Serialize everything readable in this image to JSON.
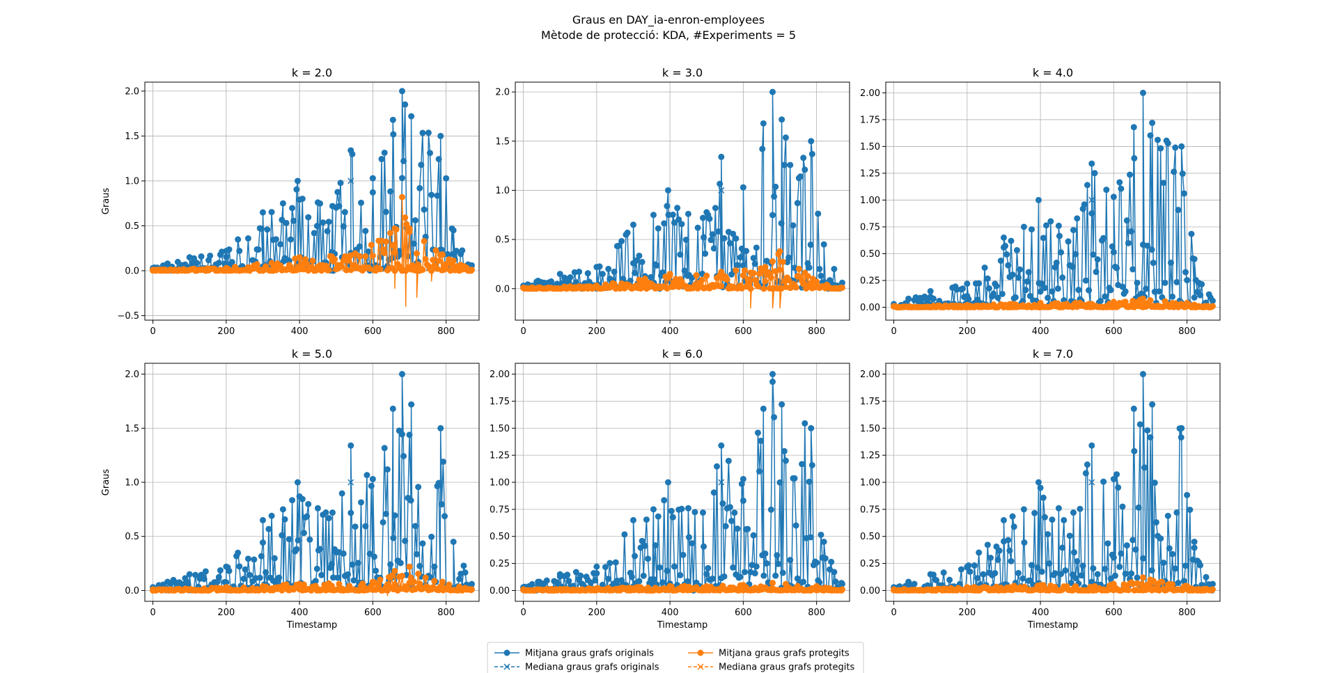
{
  "figure": {
    "title_line1": "Graus en DAY_ia-enron-employees",
    "title_line2": "Mètode de protecció: KDA, #Experiments = 5"
  },
  "legend": {
    "entries": [
      {
        "label": "Mitjana graus grafs originals",
        "series": "mean_original",
        "marker": "o",
        "linestyle": "solid",
        "color": "#1f77b4"
      },
      {
        "label": "Mediana graus grafs originals",
        "series": "median_original",
        "marker": "x",
        "linestyle": "dashed",
        "color": "#1f77b4"
      },
      {
        "label": "Mitjana graus grafs protegits",
        "series": "mean_protected",
        "marker": "o",
        "linestyle": "solid",
        "color": "#ff7f0e"
      },
      {
        "label": "Mediana graus grafs protegits",
        "series": "median_protected",
        "marker": "x",
        "linestyle": "dashed",
        "color": "#ff7f0e"
      }
    ],
    "placement": "bottom-center",
    "columns": 2
  },
  "colors": {
    "original": "#1f77b4",
    "protected": "#ff7f0e",
    "grid": "#b0b0b0"
  },
  "chart_data": [
    {
      "type": "line",
      "title": "k = 2.0",
      "xlabel": "",
      "ylabel": "Graus",
      "xlim": [
        -22,
        890
      ],
      "ylim": [
        -0.55,
        2.1
      ],
      "xticks": [
        0,
        200,
        400,
        600,
        800
      ],
      "yticks": [
        -0.5,
        0.0,
        0.5,
        1.0,
        1.5,
        2.0
      ],
      "ytick_labels": [
        "−0.5",
        "0.0",
        "0.5",
        "1.0",
        "1.5",
        "2.0"
      ],
      "grid": true,
      "x_range": [
        0,
        870
      ],
      "original_peaks": [
        [
          0,
          0.03
        ],
        [
          40,
          0.08
        ],
        [
          100,
          0.15
        ],
        [
          200,
          0.22
        ],
        [
          300,
          0.65
        ],
        [
          355,
          0.75
        ],
        [
          395,
          1.0
        ],
        [
          450,
          0.76
        ],
        [
          490,
          0.72
        ],
        [
          540,
          1.34
        ],
        [
          600,
          1.03
        ],
        [
          655,
          1.68
        ],
        [
          680,
          2.0
        ],
        [
          705,
          1.72
        ],
        [
          785,
          1.5
        ],
        [
          820,
          0.45
        ],
        [
          870,
          0.06
        ]
      ],
      "original_median_marker": [
        540,
        1.0
      ],
      "protected_peaks": [
        [
          0,
          0.01
        ],
        [
          200,
          0.03
        ],
        [
          400,
          0.15
        ],
        [
          540,
          0.17
        ],
        [
          660,
          0.47
        ],
        [
          680,
          0.82
        ],
        [
          700,
          0.47
        ],
        [
          790,
          0.18
        ],
        [
          870,
          0.01
        ]
      ],
      "protected_dips": [
        [
          660,
          -0.2
        ],
        [
          690,
          -0.4
        ],
        [
          720,
          -0.3
        ],
        [
          760,
          -0.12
        ]
      ]
    },
    {
      "type": "line",
      "title": "k = 3.0",
      "xlabel": "",
      "ylabel": "",
      "xlim": [
        -22,
        890
      ],
      "ylim": [
        -0.32,
        2.1
      ],
      "xticks": [
        0,
        200,
        400,
        600,
        800
      ],
      "yticks": [
        0.0,
        0.5,
        1.0,
        1.5,
        2.0
      ],
      "ytick_labels": [
        "0.0",
        "0.5",
        "1.0",
        "1.5",
        "2.0"
      ],
      "grid": true,
      "x_range": [
        0,
        870
      ],
      "original_peaks": [
        [
          0,
          0.03
        ],
        [
          40,
          0.08
        ],
        [
          100,
          0.15
        ],
        [
          200,
          0.22
        ],
        [
          300,
          0.65
        ],
        [
          355,
          0.75
        ],
        [
          395,
          1.0
        ],
        [
          450,
          0.76
        ],
        [
          490,
          0.72
        ],
        [
          540,
          1.34
        ],
        [
          600,
          1.03
        ],
        [
          655,
          1.68
        ],
        [
          680,
          2.0
        ],
        [
          705,
          1.72
        ],
        [
          785,
          1.5
        ],
        [
          820,
          0.45
        ],
        [
          870,
          0.06
        ]
      ],
      "original_median_marker": [
        540,
        1.0
      ],
      "protected_peaks": [
        [
          0,
          0.01
        ],
        [
          200,
          0.03
        ],
        [
          400,
          0.15
        ],
        [
          540,
          0.17
        ],
        [
          660,
          0.22
        ],
        [
          700,
          0.38
        ],
        [
          790,
          0.1
        ],
        [
          870,
          0.01
        ]
      ],
      "protected_dips": [
        [
          620,
          -0.2
        ],
        [
          680,
          -0.2
        ],
        [
          700,
          -0.2
        ]
      ]
    },
    {
      "type": "line",
      "title": "k = 4.0",
      "xlabel": "",
      "ylabel": "",
      "xlim": [
        -22,
        890
      ],
      "ylim": [
        -0.12,
        2.1
      ],
      "xticks": [
        0,
        200,
        400,
        600,
        800
      ],
      "yticks": [
        0.0,
        0.25,
        0.5,
        0.75,
        1.0,
        1.25,
        1.5,
        1.75,
        2.0
      ],
      "ytick_labels": [
        "0.00",
        "0.25",
        "0.50",
        "0.75",
        "1.00",
        "1.25",
        "1.50",
        "1.75",
        "2.00"
      ],
      "grid": true,
      "x_range": [
        0,
        870
      ],
      "original_peaks": [
        [
          0,
          0.03
        ],
        [
          40,
          0.08
        ],
        [
          100,
          0.15
        ],
        [
          200,
          0.22
        ],
        [
          300,
          0.65
        ],
        [
          355,
          0.75
        ],
        [
          395,
          1.0
        ],
        [
          450,
          0.76
        ],
        [
          490,
          0.72
        ],
        [
          540,
          1.34
        ],
        [
          600,
          1.03
        ],
        [
          655,
          1.68
        ],
        [
          680,
          2.0
        ],
        [
          705,
          1.72
        ],
        [
          785,
          1.5
        ],
        [
          820,
          0.45
        ],
        [
          870,
          0.06
        ]
      ],
      "original_median_marker": [
        540,
        1.0
      ],
      "protected_peaks": [
        [
          0,
          0.01
        ],
        [
          200,
          0.02
        ],
        [
          400,
          0.04
        ],
        [
          600,
          0.05
        ],
        [
          680,
          0.08
        ],
        [
          800,
          0.04
        ],
        [
          870,
          0.01
        ]
      ],
      "protected_dips": []
    },
    {
      "type": "line",
      "title": "k = 5.0",
      "xlabel": "Timestamp",
      "ylabel": "Graus",
      "xlim": [
        -22,
        890
      ],
      "ylim": [
        -0.1,
        2.1
      ],
      "xticks": [
        0,
        200,
        400,
        600,
        800
      ],
      "yticks": [
        0.0,
        0.5,
        1.0,
        1.5,
        2.0
      ],
      "ytick_labels": [
        "0.0",
        "0.5",
        "1.0",
        "1.5",
        "2.0"
      ],
      "grid": true,
      "x_range": [
        0,
        870
      ],
      "original_peaks": [
        [
          0,
          0.03
        ],
        [
          40,
          0.08
        ],
        [
          100,
          0.15
        ],
        [
          200,
          0.22
        ],
        [
          300,
          0.65
        ],
        [
          355,
          0.75
        ],
        [
          395,
          1.0
        ],
        [
          450,
          0.76
        ],
        [
          490,
          0.72
        ],
        [
          540,
          1.34
        ],
        [
          600,
          1.03
        ],
        [
          655,
          1.68
        ],
        [
          680,
          2.0
        ],
        [
          705,
          1.72
        ],
        [
          785,
          1.5
        ],
        [
          820,
          0.45
        ],
        [
          870,
          0.06
        ]
      ],
      "original_median_marker": [
        540,
        1.0
      ],
      "protected_peaks": [
        [
          0,
          0.01
        ],
        [
          200,
          0.03
        ],
        [
          400,
          0.06
        ],
        [
          600,
          0.08
        ],
        [
          660,
          0.18
        ],
        [
          700,
          0.22
        ],
        [
          790,
          0.08
        ],
        [
          870,
          0.01
        ]
      ],
      "protected_dips": [
        [
          640,
          -0.05
        ]
      ]
    },
    {
      "type": "line",
      "title": "k = 6.0",
      "xlabel": "Timestamp",
      "ylabel": "",
      "xlim": [
        -22,
        890
      ],
      "ylim": [
        -0.1,
        2.1
      ],
      "xticks": [
        0,
        200,
        400,
        600,
        800
      ],
      "yticks": [
        0.0,
        0.25,
        0.5,
        0.75,
        1.0,
        1.25,
        1.5,
        1.75,
        2.0
      ],
      "ytick_labels": [
        "0.00",
        "0.25",
        "0.50",
        "0.75",
        "1.00",
        "1.25",
        "1.50",
        "1.75",
        "2.00"
      ],
      "grid": true,
      "x_range": [
        0,
        870
      ],
      "original_peaks": [
        [
          0,
          0.03
        ],
        [
          40,
          0.08
        ],
        [
          100,
          0.15
        ],
        [
          200,
          0.22
        ],
        [
          300,
          0.65
        ],
        [
          355,
          0.75
        ],
        [
          395,
          1.0
        ],
        [
          450,
          0.76
        ],
        [
          490,
          0.72
        ],
        [
          540,
          1.34
        ],
        [
          600,
          1.03
        ],
        [
          655,
          1.68
        ],
        [
          680,
          2.0
        ],
        [
          705,
          1.72
        ],
        [
          785,
          1.5
        ],
        [
          820,
          0.45
        ],
        [
          870,
          0.06
        ]
      ],
      "original_median_marker": [
        540,
        1.0
      ],
      "protected_peaks": [
        [
          0,
          0.01
        ],
        [
          200,
          0.02
        ],
        [
          400,
          0.04
        ],
        [
          600,
          0.05
        ],
        [
          680,
          0.07
        ],
        [
          800,
          0.04
        ],
        [
          870,
          0.01
        ]
      ],
      "protected_dips": []
    },
    {
      "type": "line",
      "title": "k = 7.0",
      "xlabel": "Timestamp",
      "ylabel": "",
      "xlim": [
        -22,
        890
      ],
      "ylim": [
        -0.1,
        2.1
      ],
      "xticks": [
        0,
        200,
        400,
        600,
        800
      ],
      "yticks": [
        0.0,
        0.25,
        0.5,
        0.75,
        1.0,
        1.25,
        1.5,
        1.75,
        2.0
      ],
      "ytick_labels": [
        "0.00",
        "0.25",
        "0.50",
        "0.75",
        "1.00",
        "1.25",
        "1.50",
        "1.75",
        "2.00"
      ],
      "grid": true,
      "x_range": [
        0,
        870
      ],
      "original_peaks": [
        [
          0,
          0.03
        ],
        [
          40,
          0.08
        ],
        [
          100,
          0.15
        ],
        [
          200,
          0.22
        ],
        [
          300,
          0.65
        ],
        [
          355,
          0.75
        ],
        [
          395,
          1.0
        ],
        [
          450,
          0.76
        ],
        [
          490,
          0.72
        ],
        [
          540,
          1.34
        ],
        [
          600,
          1.03
        ],
        [
          655,
          1.68
        ],
        [
          680,
          2.0
        ],
        [
          705,
          1.72
        ],
        [
          785,
          1.5
        ],
        [
          820,
          0.45
        ],
        [
          870,
          0.06
        ]
      ],
      "original_median_marker": [
        540,
        1.0
      ],
      "protected_peaks": [
        [
          0,
          0.01
        ],
        [
          200,
          0.03
        ],
        [
          400,
          0.05
        ],
        [
          600,
          0.06
        ],
        [
          680,
          0.12
        ],
        [
          700,
          0.1
        ],
        [
          800,
          0.04
        ],
        [
          870,
          0.01
        ]
      ],
      "protected_dips": []
    }
  ]
}
